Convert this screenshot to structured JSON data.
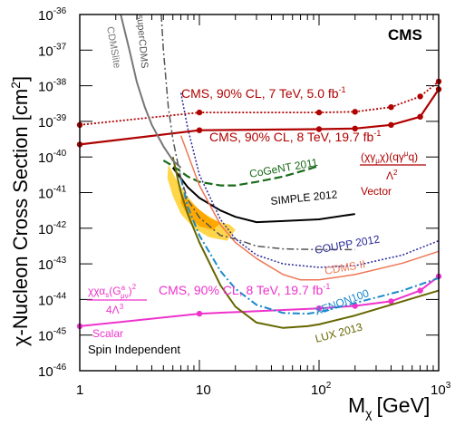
{
  "chart_data": {
    "type": "line",
    "title": "",
    "xlabel_main": "M",
    "xlabel_sub": "χ",
    "xlabel_unit": "[GeV]",
    "ylabel_main": "χ-Nucleon Cross Section [cm",
    "ylabel_sup": "2",
    "ylabel_end": "]",
    "x_scale": "log",
    "y_scale": "log",
    "xlim": [
      1,
      1000
    ],
    "ylim": [
      1e-46,
      1e-36
    ],
    "x_ticks": [
      {
        "value": 1,
        "label": "1"
      },
      {
        "value": 10,
        "label": "10"
      },
      {
        "value": 100,
        "label": "10",
        "exp": "2"
      },
      {
        "value": 1000,
        "label": "10",
        "exp": "3"
      }
    ],
    "y_ticks": [
      {
        "value": -46,
        "base": "10",
        "exp": "-46"
      },
      {
        "value": -45,
        "base": "10",
        "exp": "-45"
      },
      {
        "value": -44,
        "base": "10",
        "exp": "-44"
      },
      {
        "value": -43,
        "base": "10",
        "exp": "-43"
      },
      {
        "value": -42,
        "base": "10",
        "exp": "-42"
      },
      {
        "value": -41,
        "base": "10",
        "exp": "-41"
      },
      {
        "value": -40,
        "base": "10",
        "exp": "-40"
      },
      {
        "value": -39,
        "base": "10",
        "exp": "-39"
      },
      {
        "value": -38,
        "base": "10",
        "exp": "-38"
      },
      {
        "value": -37,
        "base": "10",
        "exp": "-37"
      },
      {
        "value": -36,
        "base": "10",
        "exp": "-36"
      }
    ],
    "grid": false,
    "regions": [
      {
        "name": "CoGeNT region (outer)",
        "color": "#ffd54a",
        "points": [
          [
            5.5,
            -40.2
          ],
          [
            6.2,
            -40.55
          ],
          [
            7.5,
            -41
          ],
          [
            10,
            -41.5
          ],
          [
            14,
            -41.8
          ],
          [
            18,
            -41.9
          ],
          [
            20,
            -42.05
          ],
          [
            17,
            -42.35
          ],
          [
            12,
            -42.25
          ],
          [
            9,
            -42.0
          ],
          [
            7,
            -41.6
          ],
          [
            6,
            -41.1
          ],
          [
            5.4,
            -40.6
          ]
        ]
      },
      {
        "name": "CoGeNT region (inner)",
        "color": "#ffa800",
        "points": [
          [
            7,
            -41.0
          ],
          [
            9,
            -41.35
          ],
          [
            12,
            -41.7
          ],
          [
            15,
            -41.85
          ],
          [
            13,
            -42.05
          ],
          [
            10,
            -41.95
          ],
          [
            8,
            -41.65
          ],
          [
            7,
            -41.3
          ]
        ]
      }
    ],
    "series": [
      {
        "name": "CMS, 90% CL, 7 TeV, 5.0 fb",
        "color": "#b00000",
        "style": "dotted",
        "width": 1.8,
        "markers": true,
        "points": [
          [
            1,
            -39.1
          ],
          [
            10,
            -38.75
          ],
          [
            100,
            -38.75
          ],
          [
            200,
            -38.73
          ],
          [
            400,
            -38.6
          ],
          [
            700,
            -38.3
          ],
          [
            1000,
            -37.88
          ]
        ]
      },
      {
        "name": "CMS, 90% CL, 8 TeV, 19.7 fb",
        "color": "#b00000",
        "style": "solid",
        "width": 2.2,
        "markers": true,
        "points": [
          [
            1,
            -39.65
          ],
          [
            10,
            -39.25
          ],
          [
            100,
            -39.22
          ],
          [
            200,
            -39.2
          ],
          [
            400,
            -39.1
          ],
          [
            700,
            -38.87
          ],
          [
            1000,
            -38.1
          ]
        ]
      },
      {
        "name": "Scalar",
        "color": "#ee33cc",
        "style": "solid",
        "width": 2,
        "markers": true,
        "points": [
          [
            1,
            -44.75
          ],
          [
            10,
            -44.4
          ],
          [
            100,
            -44.25
          ],
          [
            200,
            -44.18
          ],
          [
            400,
            -44.05
          ],
          [
            700,
            -43.75
          ],
          [
            1000,
            -43.35
          ]
        ]
      },
      {
        "name": "CoGeNT 2011",
        "color": "#1a6a1a",
        "style": "dashed",
        "width": 2.2,
        "markers": false,
        "points": [
          [
            5,
            -40.1
          ],
          [
            6,
            -40.25
          ],
          [
            8,
            -40.55
          ],
          [
            10,
            -40.7
          ],
          [
            15,
            -40.8
          ],
          [
            20,
            -40.8
          ],
          [
            30,
            -40.7
          ],
          [
            50,
            -40.55
          ],
          [
            80,
            -40.35
          ],
          [
            100,
            -40.25
          ]
        ]
      },
      {
        "name": "SIMPLE 2012",
        "color": "#000000",
        "style": "solid",
        "width": 2,
        "markers": false,
        "points": [
          [
            6,
            -40.3
          ],
          [
            8,
            -40.85
          ],
          [
            10,
            -41.15
          ],
          [
            15,
            -41.5
          ],
          [
            20,
            -41.68
          ],
          [
            30,
            -41.83
          ],
          [
            50,
            -41.8
          ],
          [
            100,
            -41.75
          ],
          [
            200,
            -41.6
          ]
        ]
      },
      {
        "name": "COUPP 2012",
        "color": "#2a2a99",
        "style": "dotted",
        "width": 1.5,
        "markers": false,
        "points": [
          [
            7,
            -38.2
          ],
          [
            8,
            -39.2
          ],
          [
            10,
            -40.5
          ],
          [
            15,
            -41.75
          ],
          [
            20,
            -42.3
          ],
          [
            30,
            -42.75
          ],
          [
            50,
            -43.0
          ],
          [
            100,
            -43.1
          ],
          [
            200,
            -43.05
          ],
          [
            500,
            -42.75
          ],
          [
            1000,
            -42.35
          ]
        ]
      },
      {
        "name": "CDMS II",
        "color": "#ee7755",
        "style": "solid",
        "width": 1.5,
        "markers": false,
        "points": [
          [
            7,
            -39.4
          ],
          [
            10,
            -40.8
          ],
          [
            15,
            -41.9
          ],
          [
            20,
            -42.4
          ],
          [
            30,
            -42.85
          ],
          [
            50,
            -43.3
          ],
          [
            70,
            -43.45
          ],
          [
            100,
            -43.45
          ],
          [
            200,
            -43.3
          ],
          [
            500,
            -42.98
          ],
          [
            1000,
            -42.65
          ]
        ]
      },
      {
        "name": "XENON100",
        "color": "#1a8acc",
        "style": "dashdot",
        "width": 2,
        "markers": false,
        "points": [
          [
            7,
            -40.6
          ],
          [
            8,
            -41.4
          ],
          [
            10,
            -42.2
          ],
          [
            15,
            -43.2
          ],
          [
            20,
            -43.7
          ],
          [
            30,
            -44.15
          ],
          [
            50,
            -44.38
          ],
          [
            80,
            -44.4
          ],
          [
            100,
            -44.35
          ],
          [
            200,
            -44.1
          ],
          [
            500,
            -43.75
          ],
          [
            1000,
            -43.4
          ]
        ]
      },
      {
        "name": "LUX 2013",
        "color": "#666600",
        "style": "solid",
        "width": 2,
        "markers": false,
        "points": [
          [
            6,
            -40.0
          ],
          [
            7,
            -41.0
          ],
          [
            8,
            -41.6
          ],
          [
            10,
            -42.4
          ],
          [
            15,
            -43.6
          ],
          [
            20,
            -44.2
          ],
          [
            30,
            -44.65
          ],
          [
            50,
            -44.8
          ],
          [
            80,
            -44.75
          ],
          [
            100,
            -44.7
          ],
          [
            200,
            -44.45
          ],
          [
            500,
            -44.05
          ],
          [
            1000,
            -43.75
          ]
        ]
      },
      {
        "name": "CDMSlite",
        "color": "#777777",
        "style": "solid",
        "width": 2,
        "markers": false,
        "points": [
          [
            2.2,
            -36.0
          ],
          [
            2.6,
            -37
          ],
          [
            3,
            -37.9
          ],
          [
            3.5,
            -38.6
          ],
          [
            4,
            -39.1
          ],
          [
            5,
            -39.7
          ],
          [
            6,
            -40.1
          ],
          [
            7,
            -40.3
          ]
        ]
      },
      {
        "name": "superCDMS",
        "color": "#555555",
        "style": "dashdot",
        "width": 1.5,
        "markers": false,
        "points": [
          [
            4.8,
            -36.0
          ],
          [
            5,
            -37
          ],
          [
            5.5,
            -38.6
          ],
          [
            6,
            -39.5
          ],
          [
            7,
            -40.6
          ],
          [
            8,
            -41.2
          ],
          [
            10,
            -41.7
          ],
          [
            15,
            -42.2
          ],
          [
            20,
            -42.3
          ],
          [
            30,
            -42.5
          ],
          [
            50,
            -42.58
          ],
          [
            100,
            -42.6
          ],
          [
            200,
            -42.6
          ]
        ]
      }
    ],
    "annotations": [
      {
        "text": "CMS",
        "color": "#000000"
      },
      {
        "text": "CMS, 90% CL, 7 TeV, 5.0 fb",
        "sup": "-1",
        "color": "#b00000"
      },
      {
        "text": "CMS, 90% CL, 8 TeV, 19.7 fb",
        "sup": "-1",
        "color": "#b00000"
      },
      {
        "text": "CoGeNT 2011",
        "color": "#1a6a1a"
      },
      {
        "text": "SIMPLE 2012",
        "color": "#000000"
      },
      {
        "text": "COUPP 2012",
        "color": "#2a2a99"
      },
      {
        "text": "CDMS II",
        "color": "#ee7755"
      },
      {
        "text": "XENON100",
        "color": "#1a8acc"
      },
      {
        "text": "LUX 2013",
        "color": "#666600"
      },
      {
        "text": "CDMSlite",
        "color": "#777777"
      },
      {
        "text": "superCDMS",
        "color": "#555555"
      },
      {
        "text": "CMS, 90% CL, 8 TeV, 19.7 fb",
        "sup": "-1",
        "color": "#ee33cc"
      },
      {
        "text": "Scalar",
        "color": "#ee33cc"
      },
      {
        "text": "Vector",
        "color": "#b00000"
      },
      {
        "text": "Spin Independent",
        "color": "#000000"
      }
    ],
    "operators": {
      "vector_numerator": "(χγ",
      "vector_numerator_sub": "μ",
      "vector_numerator_mid": "χ)(qγ",
      "vector_numerator_sup": "μ",
      "vector_numerator_end": "q)",
      "vector_denominator": "Λ",
      "vector_denominator_sup": "2",
      "scalar_numerator": "χχα",
      "scalar_numerator_sub": "s",
      "scalar_numerator_mid": "(G",
      "scalar_numerator_sup": "a",
      "scalar_numerator_sub2": "μν",
      "scalar_numerator_end": ")",
      "scalar_numerator_pow": "2",
      "scalar_denominator": "4Λ",
      "scalar_denominator_sup": "3"
    }
  }
}
